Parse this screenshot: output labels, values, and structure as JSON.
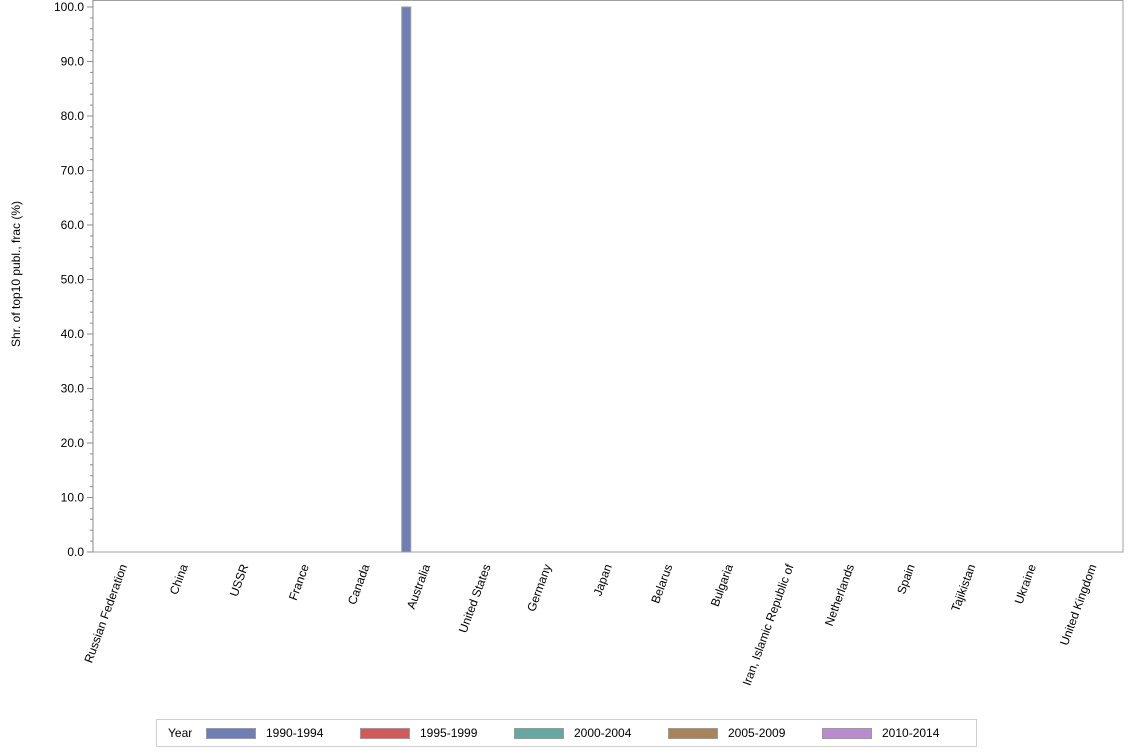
{
  "chart_data": {
    "type": "bar",
    "title": "",
    "xlabel": "",
    "ylabel": "Shr. of top10 publ., frac (%)",
    "ylim": [
      0,
      100
    ],
    "yticks": [
      "0.0",
      "10.0",
      "20.0",
      "30.0",
      "40.0",
      "50.0",
      "60.0",
      "70.0",
      "80.0",
      "90.0",
      "100.0"
    ],
    "grid": false,
    "legend_position": "bottom",
    "legend_title": "Year",
    "categories": [
      "Russian Federation",
      "China",
      "USSR",
      "France",
      "Canada",
      "Australia",
      "United States",
      "Germany",
      "Japan",
      "Belarus",
      "Bulgaria",
      "Iran, Islamic Republic of",
      "Netherlands",
      "Spain",
      "Tajikistan",
      "Ukraine",
      "United Kingdom"
    ],
    "series": [
      {
        "name": "1990-1994",
        "color": "#6f7fb5",
        "values": [
          0,
          0,
          0,
          0,
          0,
          100,
          0,
          0,
          0,
          0,
          0,
          0,
          0,
          0,
          0,
          0,
          0
        ]
      },
      {
        "name": "1995-1999",
        "color": "#d05b5b",
        "values": [
          0,
          0,
          0,
          0,
          0,
          0,
          0,
          0,
          0,
          0,
          0,
          0,
          0,
          0,
          0,
          0,
          0
        ]
      },
      {
        "name": "2000-2004",
        "color": "#66a8a0",
        "values": [
          0,
          0,
          0,
          0,
          0,
          0,
          0,
          0,
          0,
          0,
          0,
          0,
          0,
          0,
          0,
          0,
          0
        ]
      },
      {
        "name": "2005-2009",
        "color": "#a8845c",
        "values": [
          0,
          0,
          0,
          0,
          0,
          0,
          0,
          0,
          0,
          0,
          0,
          0,
          0,
          0,
          0,
          0,
          0
        ]
      },
      {
        "name": "2010-2014",
        "color": "#b98bcf",
        "values": [
          0,
          0,
          0,
          0,
          0,
          0,
          0,
          0,
          0,
          0,
          0,
          0,
          0,
          0,
          0,
          0,
          0
        ]
      }
    ]
  }
}
